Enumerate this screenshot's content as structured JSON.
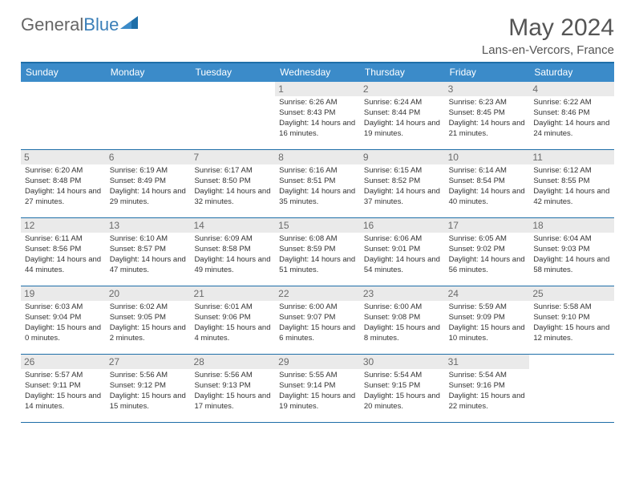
{
  "logo": {
    "part1": "General",
    "part2": "Blue"
  },
  "title": "May 2024",
  "location": "Lans-en-Vercors, France",
  "colors": {
    "header_bg": "#3b8bc9",
    "border": "#1e6ea8",
    "daynum_bg": "#eaeaea",
    "text": "#333333",
    "muted": "#6a6a6a"
  },
  "weekdays": [
    "Sunday",
    "Monday",
    "Tuesday",
    "Wednesday",
    "Thursday",
    "Friday",
    "Saturday"
  ],
  "weeks": [
    [
      {
        "n": "",
        "sr": "",
        "ss": "",
        "dl": ""
      },
      {
        "n": "",
        "sr": "",
        "ss": "",
        "dl": ""
      },
      {
        "n": "",
        "sr": "",
        "ss": "",
        "dl": ""
      },
      {
        "n": "1",
        "sr": "Sunrise: 6:26 AM",
        "ss": "Sunset: 8:43 PM",
        "dl": "Daylight: 14 hours and 16 minutes."
      },
      {
        "n": "2",
        "sr": "Sunrise: 6:24 AM",
        "ss": "Sunset: 8:44 PM",
        "dl": "Daylight: 14 hours and 19 minutes."
      },
      {
        "n": "3",
        "sr": "Sunrise: 6:23 AM",
        "ss": "Sunset: 8:45 PM",
        "dl": "Daylight: 14 hours and 21 minutes."
      },
      {
        "n": "4",
        "sr": "Sunrise: 6:22 AM",
        "ss": "Sunset: 8:46 PM",
        "dl": "Daylight: 14 hours and 24 minutes."
      }
    ],
    [
      {
        "n": "5",
        "sr": "Sunrise: 6:20 AM",
        "ss": "Sunset: 8:48 PM",
        "dl": "Daylight: 14 hours and 27 minutes."
      },
      {
        "n": "6",
        "sr": "Sunrise: 6:19 AM",
        "ss": "Sunset: 8:49 PM",
        "dl": "Daylight: 14 hours and 29 minutes."
      },
      {
        "n": "7",
        "sr": "Sunrise: 6:17 AM",
        "ss": "Sunset: 8:50 PM",
        "dl": "Daylight: 14 hours and 32 minutes."
      },
      {
        "n": "8",
        "sr": "Sunrise: 6:16 AM",
        "ss": "Sunset: 8:51 PM",
        "dl": "Daylight: 14 hours and 35 minutes."
      },
      {
        "n": "9",
        "sr": "Sunrise: 6:15 AM",
        "ss": "Sunset: 8:52 PM",
        "dl": "Daylight: 14 hours and 37 minutes."
      },
      {
        "n": "10",
        "sr": "Sunrise: 6:14 AM",
        "ss": "Sunset: 8:54 PM",
        "dl": "Daylight: 14 hours and 40 minutes."
      },
      {
        "n": "11",
        "sr": "Sunrise: 6:12 AM",
        "ss": "Sunset: 8:55 PM",
        "dl": "Daylight: 14 hours and 42 minutes."
      }
    ],
    [
      {
        "n": "12",
        "sr": "Sunrise: 6:11 AM",
        "ss": "Sunset: 8:56 PM",
        "dl": "Daylight: 14 hours and 44 minutes."
      },
      {
        "n": "13",
        "sr": "Sunrise: 6:10 AM",
        "ss": "Sunset: 8:57 PM",
        "dl": "Daylight: 14 hours and 47 minutes."
      },
      {
        "n": "14",
        "sr": "Sunrise: 6:09 AM",
        "ss": "Sunset: 8:58 PM",
        "dl": "Daylight: 14 hours and 49 minutes."
      },
      {
        "n": "15",
        "sr": "Sunrise: 6:08 AM",
        "ss": "Sunset: 8:59 PM",
        "dl": "Daylight: 14 hours and 51 minutes."
      },
      {
        "n": "16",
        "sr": "Sunrise: 6:06 AM",
        "ss": "Sunset: 9:01 PM",
        "dl": "Daylight: 14 hours and 54 minutes."
      },
      {
        "n": "17",
        "sr": "Sunrise: 6:05 AM",
        "ss": "Sunset: 9:02 PM",
        "dl": "Daylight: 14 hours and 56 minutes."
      },
      {
        "n": "18",
        "sr": "Sunrise: 6:04 AM",
        "ss": "Sunset: 9:03 PM",
        "dl": "Daylight: 14 hours and 58 minutes."
      }
    ],
    [
      {
        "n": "19",
        "sr": "Sunrise: 6:03 AM",
        "ss": "Sunset: 9:04 PM",
        "dl": "Daylight: 15 hours and 0 minutes."
      },
      {
        "n": "20",
        "sr": "Sunrise: 6:02 AM",
        "ss": "Sunset: 9:05 PM",
        "dl": "Daylight: 15 hours and 2 minutes."
      },
      {
        "n": "21",
        "sr": "Sunrise: 6:01 AM",
        "ss": "Sunset: 9:06 PM",
        "dl": "Daylight: 15 hours and 4 minutes."
      },
      {
        "n": "22",
        "sr": "Sunrise: 6:00 AM",
        "ss": "Sunset: 9:07 PM",
        "dl": "Daylight: 15 hours and 6 minutes."
      },
      {
        "n": "23",
        "sr": "Sunrise: 6:00 AM",
        "ss": "Sunset: 9:08 PM",
        "dl": "Daylight: 15 hours and 8 minutes."
      },
      {
        "n": "24",
        "sr": "Sunrise: 5:59 AM",
        "ss": "Sunset: 9:09 PM",
        "dl": "Daylight: 15 hours and 10 minutes."
      },
      {
        "n": "25",
        "sr": "Sunrise: 5:58 AM",
        "ss": "Sunset: 9:10 PM",
        "dl": "Daylight: 15 hours and 12 minutes."
      }
    ],
    [
      {
        "n": "26",
        "sr": "Sunrise: 5:57 AM",
        "ss": "Sunset: 9:11 PM",
        "dl": "Daylight: 15 hours and 14 minutes."
      },
      {
        "n": "27",
        "sr": "Sunrise: 5:56 AM",
        "ss": "Sunset: 9:12 PM",
        "dl": "Daylight: 15 hours and 15 minutes."
      },
      {
        "n": "28",
        "sr": "Sunrise: 5:56 AM",
        "ss": "Sunset: 9:13 PM",
        "dl": "Daylight: 15 hours and 17 minutes."
      },
      {
        "n": "29",
        "sr": "Sunrise: 5:55 AM",
        "ss": "Sunset: 9:14 PM",
        "dl": "Daylight: 15 hours and 19 minutes."
      },
      {
        "n": "30",
        "sr": "Sunrise: 5:54 AM",
        "ss": "Sunset: 9:15 PM",
        "dl": "Daylight: 15 hours and 20 minutes."
      },
      {
        "n": "31",
        "sr": "Sunrise: 5:54 AM",
        "ss": "Sunset: 9:16 PM",
        "dl": "Daylight: 15 hours and 22 minutes."
      },
      {
        "n": "",
        "sr": "",
        "ss": "",
        "dl": ""
      }
    ]
  ]
}
